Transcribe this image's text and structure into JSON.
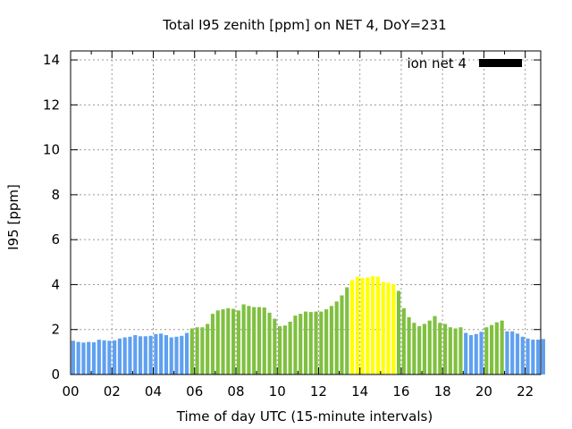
{
  "chart_data": {
    "type": "bar",
    "title": "Total I95 zenith [ppm] on NET 4, DoY=231",
    "xlabel": "Time of day UTC (15-minute intervals)",
    "ylabel": "I95 [ppm]",
    "xlim": [
      0,
      22.75
    ],
    "ylim": [
      0,
      14.4
    ],
    "xticks": [
      "00",
      "02",
      "04",
      "06",
      "08",
      "10",
      "12",
      "14",
      "16",
      "18",
      "20",
      "22"
    ],
    "yticks": [
      "0",
      "2",
      "4",
      "6",
      "8",
      "10",
      "12",
      "14"
    ],
    "grid": true,
    "legend": {
      "label": "ion net 4",
      "position": "top-right",
      "color": "#000000"
    },
    "interval_hours": 0.25,
    "colors": {
      "low": "#5fa0f0",
      "mid": "#80c040",
      "high": "#ffff00"
    },
    "thresholds": {
      "mid_from": 2.0,
      "high_from": 4.0
    },
    "values": [
      1.5,
      1.45,
      1.42,
      1.45,
      1.43,
      1.55,
      1.52,
      1.5,
      1.52,
      1.6,
      1.65,
      1.68,
      1.75,
      1.7,
      1.7,
      1.72,
      1.8,
      1.82,
      1.75,
      1.65,
      1.68,
      1.72,
      1.85,
      2.05,
      2.1,
      2.1,
      2.25,
      2.7,
      2.85,
      2.9,
      2.95,
      2.92,
      2.85,
      3.12,
      3.05,
      3.0,
      3.0,
      2.98,
      2.75,
      2.48,
      2.15,
      2.18,
      2.35,
      2.62,
      2.7,
      2.8,
      2.78,
      2.8,
      2.8,
      2.9,
      3.05,
      3.25,
      3.52,
      3.88,
      4.2,
      4.35,
      4.3,
      4.32,
      4.38,
      4.35,
      4.12,
      4.08,
      4.02,
      3.72,
      2.95,
      2.55,
      2.3,
      2.15,
      2.25,
      2.4,
      2.6,
      2.3,
      2.25,
      2.1,
      2.05,
      2.1,
      1.85,
      1.75,
      1.8,
      1.9,
      2.1,
      2.2,
      2.32,
      2.4,
      1.92,
      1.92,
      1.82,
      1.68,
      1.6,
      1.55,
      1.55,
      1.58
    ],
    "categories": [
      "low",
      "low",
      "low",
      "low",
      "low",
      "low",
      "low",
      "low",
      "low",
      "low",
      "low",
      "low",
      "low",
      "low",
      "low",
      "low",
      "low",
      "low",
      "low",
      "low",
      "low",
      "low",
      "low",
      "mid",
      "mid",
      "mid",
      "mid",
      "mid",
      "mid",
      "mid",
      "mid",
      "mid",
      "mid",
      "mid",
      "mid",
      "mid",
      "mid",
      "mid",
      "mid",
      "mid",
      "mid",
      "mid",
      "mid",
      "mid",
      "mid",
      "mid",
      "mid",
      "mid",
      "mid",
      "mid",
      "mid",
      "mid",
      "mid",
      "mid",
      "high",
      "high",
      "high",
      "high",
      "high",
      "high",
      "high",
      "high",
      "high",
      "mid",
      "mid",
      "mid",
      "mid",
      "mid",
      "mid",
      "mid",
      "mid",
      "mid",
      "mid",
      "mid",
      "mid",
      "mid",
      "low",
      "low",
      "low",
      "low",
      "mid",
      "mid",
      "mid",
      "mid",
      "low",
      "low",
      "low",
      "low",
      "low",
      "low",
      "low",
      "low"
    ]
  }
}
